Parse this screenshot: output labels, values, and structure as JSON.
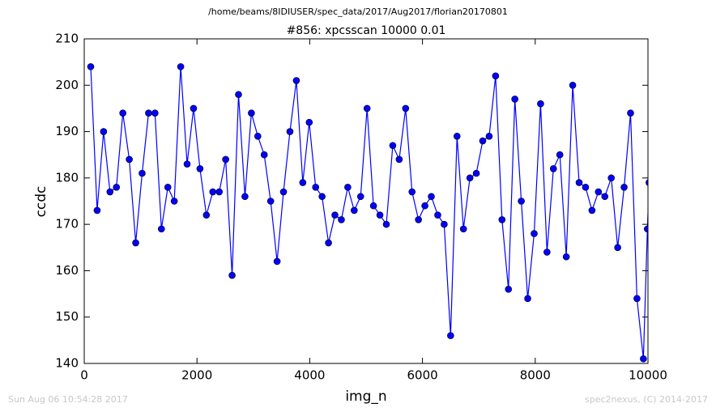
{
  "chart_data": {
    "type": "line",
    "suptitle": "/home/beams/8IDIUSER/spec_data/2017/Aug2017/florian20170801",
    "title": "#856: xpcsscan 10000 0.01",
    "x_label": "img_n",
    "y_label": "ccdc",
    "footer_left": "Sun Aug 06 10:54:28 2017",
    "footer_right": "spec2nexus, (C) 2014-2017",
    "color": "#0000ff",
    "marker": true,
    "x": [
      115,
      229,
      343,
      457,
      571,
      685,
      799,
      913,
      1027,
      1141,
      1255,
      1369,
      1483,
      1597,
      1711,
      1825,
      1939,
      2053,
      2167,
      2281,
      2395,
      2509,
      2623,
      2737,
      2851,
      2965,
      3079,
      3193,
      3307,
      3421,
      3535,
      3649,
      3763,
      3877,
      3991,
      4105,
      4219,
      4333,
      4447,
      4561,
      4675,
      4789,
      4903,
      5017,
      5131,
      5245,
      5359,
      5473,
      5587,
      5701,
      5815,
      5929,
      6043,
      6157,
      6271,
      6385,
      6499,
      6613,
      6727,
      6841,
      6955,
      7069,
      7183,
      7297,
      7411,
      7525,
      7639,
      7753,
      7867,
      7981,
      8095,
      8209,
      8323,
      8437,
      8551,
      8665,
      8779,
      8893,
      9007,
      9121,
      9235,
      9349,
      9463,
      9577,
      9691,
      9805,
      9919,
      9990,
      10020
    ],
    "values": [
      204,
      173,
      190,
      177,
      178,
      194,
      184,
      166,
      181,
      194,
      194,
      169,
      178,
      175,
      204,
      183,
      195,
      182,
      172,
      177,
      177,
      184,
      159,
      198,
      176,
      194,
      189,
      185,
      175,
      162,
      177,
      190,
      201,
      179,
      192,
      178,
      176,
      166,
      172,
      171,
      178,
      173,
      176,
      195,
      174,
      172,
      170,
      187,
      184,
      195,
      177,
      171,
      174,
      176,
      172,
      170,
      146,
      189,
      169,
      180,
      181,
      188,
      189,
      202,
      171,
      156,
      197,
      175,
      154,
      168,
      196,
      164,
      182,
      185,
      163,
      200,
      179,
      178,
      173,
      177,
      176,
      180,
      165,
      178,
      194,
      154,
      141,
      169,
      179
    ],
    "xlim": [
      0,
      10000
    ],
    "xticks": [
      0,
      2000,
      4000,
      6000,
      8000,
      10000
    ],
    "ylim": [
      140,
      210
    ],
    "yticks": [
      140,
      150,
      160,
      170,
      180,
      190,
      200,
      210
    ]
  }
}
